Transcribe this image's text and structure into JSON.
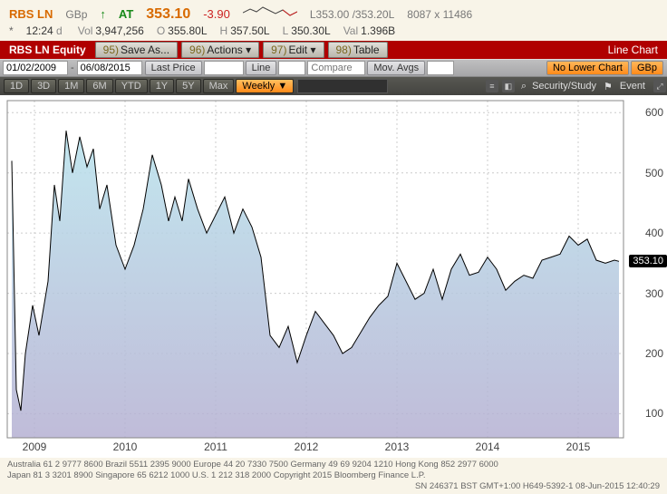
{
  "quote": {
    "ticker": "RBS LN",
    "currency": "GBp",
    "arrow": "↑",
    "at_label": "AT",
    "price": "353.10",
    "change": "-3.90",
    "bid_ask": "L353.00 /353.20L",
    "size": "8087 x 11486",
    "asterisk": "*",
    "time": "12:24",
    "d": "d",
    "vol_lbl": "Vol",
    "vol": "3,947,256",
    "o_lbl": "O",
    "o": "355.80L",
    "h_lbl": "H",
    "h": "357.50L",
    "l_lbl": "L",
    "l": "350.30L",
    "val_lbl": "Val",
    "val": "1.396B"
  },
  "redbar": {
    "equity": "RBS LN Equity",
    "btns": [
      {
        "n": "95)",
        "t": "Save As..."
      },
      {
        "n": "96)",
        "t": "Actions ▾"
      },
      {
        "n": "97)",
        "t": "Edit ▾"
      },
      {
        "n": "98)",
        "t": "Table"
      }
    ],
    "right": "Line Chart"
  },
  "toolbar": {
    "date_from": "01/02/2009",
    "date_to": "06/08/2015",
    "last_price": "Last Price",
    "line": "Line",
    "compare": "Compare",
    "mov_avgs": "Mov. Avgs",
    "no_lower": "No Lower Chart",
    "gbp": "GBp"
  },
  "toolbar2": {
    "ranges": [
      "1D",
      "3D",
      "1M",
      "6M",
      "YTD",
      "1Y",
      "5Y",
      "Max"
    ],
    "period": "Weekly ▼",
    "security": "Security/Study",
    "event": "Event"
  },
  "chart": {
    "type": "area",
    "xlim": [
      2008.7,
      2015.5
    ],
    "ylim": [
      60,
      620
    ],
    "ytick_step": 100,
    "yticks": [
      100,
      200,
      300,
      400,
      500,
      600
    ],
    "xticks": [
      2009,
      2010,
      2011,
      2012,
      2013,
      2014,
      2015
    ],
    "fill_top": "#b7e2ec",
    "fill_bottom": "#b5b0d2",
    "line_color": "#000000",
    "line_width": 1,
    "grid_color": "#cccccc",
    "background": "#ffffff",
    "tag_value": "353.10",
    "tag_bg": "#000000",
    "tag_color": "#ffffff",
    "data": [
      [
        2008.75,
        520
      ],
      [
        2008.8,
        140
      ],
      [
        2008.85,
        105
      ],
      [
        2008.9,
        200
      ],
      [
        2008.98,
        280
      ],
      [
        2009.05,
        230
      ],
      [
        2009.15,
        320
      ],
      [
        2009.22,
        480
      ],
      [
        2009.28,
        420
      ],
      [
        2009.35,
        570
      ],
      [
        2009.42,
        500
      ],
      [
        2009.5,
        560
      ],
      [
        2009.58,
        510
      ],
      [
        2009.65,
        540
      ],
      [
        2009.72,
        440
      ],
      [
        2009.8,
        480
      ],
      [
        2009.9,
        380
      ],
      [
        2010.0,
        340
      ],
      [
        2010.1,
        380
      ],
      [
        2010.2,
        440
      ],
      [
        2010.3,
        530
      ],
      [
        2010.4,
        480
      ],
      [
        2010.48,
        420
      ],
      [
        2010.55,
        460
      ],
      [
        2010.63,
        420
      ],
      [
        2010.7,
        490
      ],
      [
        2010.8,
        440
      ],
      [
        2010.9,
        400
      ],
      [
        2011.0,
        430
      ],
      [
        2011.1,
        460
      ],
      [
        2011.2,
        400
      ],
      [
        2011.3,
        440
      ],
      [
        2011.4,
        410
      ],
      [
        2011.5,
        360
      ],
      [
        2011.6,
        230
      ],
      [
        2011.7,
        210
      ],
      [
        2011.8,
        245
      ],
      [
        2011.9,
        185
      ],
      [
        2012.0,
        230
      ],
      [
        2012.1,
        270
      ],
      [
        2012.2,
        250
      ],
      [
        2012.3,
        230
      ],
      [
        2012.4,
        200
      ],
      [
        2012.5,
        210
      ],
      [
        2012.6,
        235
      ],
      [
        2012.7,
        260
      ],
      [
        2012.8,
        280
      ],
      [
        2012.9,
        295
      ],
      [
        2013.0,
        350
      ],
      [
        2013.1,
        320
      ],
      [
        2013.2,
        290
      ],
      [
        2013.3,
        300
      ],
      [
        2013.4,
        340
      ],
      [
        2013.5,
        290
      ],
      [
        2013.6,
        340
      ],
      [
        2013.7,
        365
      ],
      [
        2013.8,
        330
      ],
      [
        2013.9,
        335
      ],
      [
        2014.0,
        360
      ],
      [
        2014.1,
        340
      ],
      [
        2014.2,
        305
      ],
      [
        2014.3,
        320
      ],
      [
        2014.4,
        330
      ],
      [
        2014.5,
        325
      ],
      [
        2014.6,
        355
      ],
      [
        2014.7,
        360
      ],
      [
        2014.8,
        365
      ],
      [
        2014.9,
        395
      ],
      [
        2015.0,
        380
      ],
      [
        2015.1,
        390
      ],
      [
        2015.2,
        355
      ],
      [
        2015.3,
        350
      ],
      [
        2015.4,
        355
      ],
      [
        2015.45,
        353.1
      ]
    ]
  },
  "footer": {
    "line1": "Australia 61 2 9777 8600 Brazil 5511 2395 9000 Europe 44 20 7330 7500 Germany 49 69 9204 1210 Hong Kong 852 2977 6000",
    "line2": "Japan 81 3 3201 8900        Singapore 65 6212 1000        U.S. 1 212 318 2000            Copyright 2015 Bloomberg Finance L.P.",
    "line3": "SN 246371 BST  GMT+1:00 H649-5392-1 08-Jun-2015 12:40:29"
  }
}
